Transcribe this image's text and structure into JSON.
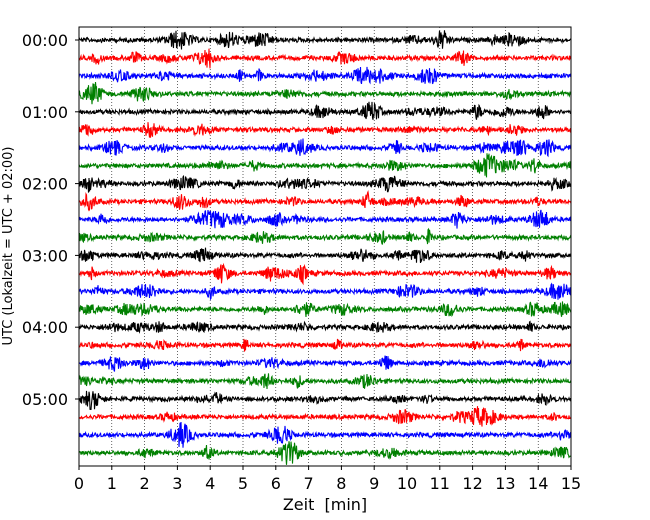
{
  "chart_data": {
    "type": "line",
    "title": "",
    "xlabel": "Zeit  [min]",
    "ylabel": "UTC (Lokalzeit = UTC + 02:00)",
    "xlim": [
      0,
      15
    ],
    "x_ticks": [
      0,
      1,
      2,
      3,
      4,
      5,
      6,
      7,
      8,
      9,
      10,
      11,
      12,
      13,
      14,
      15
    ],
    "x_tick_labels": [
      "0",
      "1",
      "2",
      "3",
      "4",
      "5",
      "6",
      "7",
      "8",
      "9",
      "10",
      "11",
      "12",
      "13",
      "14",
      "15"
    ],
    "y_tick_labels": [
      "00:00",
      "01:00",
      "02:00",
      "03:00",
      "04:00",
      "05:00"
    ],
    "y_tick_rows": [
      0,
      4,
      8,
      12,
      16,
      20
    ],
    "row_count": 24,
    "row_minutes": 15,
    "vertical_grid": "dotted, every 1 min",
    "color_cycle": [
      "#000000",
      "#ff0000",
      "#0000ff",
      "#008000"
    ],
    "series": [
      {
        "start": "00:00",
        "color": "#000000"
      },
      {
        "start": "00:15",
        "color": "#ff0000"
      },
      {
        "start": "00:30",
        "color": "#0000ff"
      },
      {
        "start": "00:45",
        "color": "#008000"
      },
      {
        "start": "01:00",
        "color": "#000000"
      },
      {
        "start": "01:15",
        "color": "#ff0000"
      },
      {
        "start": "01:30",
        "color": "#0000ff"
      },
      {
        "start": "01:45",
        "color": "#008000"
      },
      {
        "start": "02:00",
        "color": "#000000"
      },
      {
        "start": "02:15",
        "color": "#ff0000"
      },
      {
        "start": "02:30",
        "color": "#0000ff"
      },
      {
        "start": "02:45",
        "color": "#008000"
      },
      {
        "start": "03:00",
        "color": "#000000"
      },
      {
        "start": "03:15",
        "color": "#ff0000"
      },
      {
        "start": "03:30",
        "color": "#0000ff"
      },
      {
        "start": "03:45",
        "color": "#008000"
      },
      {
        "start": "04:00",
        "color": "#000000"
      },
      {
        "start": "04:15",
        "color": "#ff0000"
      },
      {
        "start": "04:30",
        "color": "#0000ff"
      },
      {
        "start": "04:45",
        "color": "#008000"
      },
      {
        "start": "05:00",
        "color": "#000000"
      },
      {
        "start": "05:15",
        "color": "#ff0000"
      },
      {
        "start": "05:30",
        "color": "#0000ff"
      },
      {
        "start": "05:45",
        "color": "#008000"
      }
    ]
  }
}
